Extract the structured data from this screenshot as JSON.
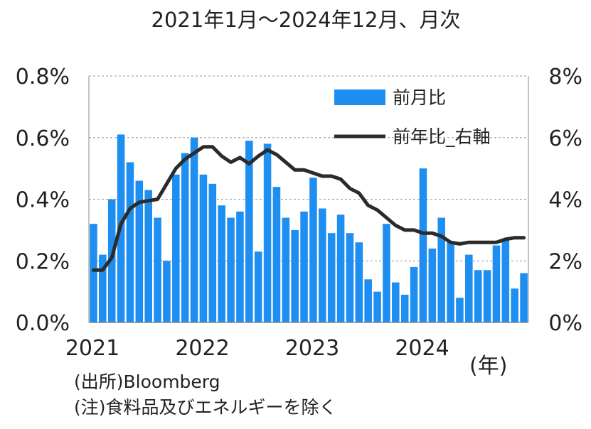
{
  "chart_data": {
    "type": "bar",
    "title": "2021年1月～2024年12月、月次",
    "x_label": "(年)",
    "x_ticks": [
      "2021",
      "2022",
      "2023",
      "2024"
    ],
    "y_left": {
      "min": 0,
      "max": 0.8,
      "ticks": [
        "0.0%",
        "0.2%",
        "0.4%",
        "0.6%",
        "0.8%"
      ]
    },
    "y_right": {
      "min": 0,
      "max": 8,
      "ticks": [
        "0%",
        "2%",
        "4%",
        "6%",
        "8%"
      ]
    },
    "grid": "horizontal dashed",
    "legend_position": "top-right",
    "colors": {
      "bar": "#1e8ef0",
      "line": "#2b2b2b"
    },
    "series": [
      {
        "name": "前月比",
        "type": "bar",
        "axis": "left",
        "values": [
          0.32,
          0.22,
          0.4,
          0.61,
          0.52,
          0.46,
          0.43,
          0.34,
          0.2,
          0.48,
          0.55,
          0.6,
          0.48,
          0.45,
          0.38,
          0.34,
          0.36,
          0.59,
          0.23,
          0.58,
          0.44,
          0.34,
          0.3,
          0.36,
          0.47,
          0.37,
          0.29,
          0.35,
          0.29,
          0.26,
          0.14,
          0.1,
          0.32,
          0.13,
          0.09,
          0.18,
          0.5,
          0.24,
          0.34,
          0.26,
          0.08,
          0.22,
          0.17,
          0.17,
          0.25,
          0.27,
          0.11,
          0.16
        ]
      },
      {
        "name": "前年比_右軸",
        "type": "line",
        "axis": "right",
        "values": [
          1.7,
          1.7,
          2.1,
          3.2,
          3.7,
          3.9,
          3.95,
          4.0,
          4.5,
          5.0,
          5.3,
          5.5,
          5.7,
          5.7,
          5.4,
          5.2,
          5.35,
          5.15,
          5.4,
          5.6,
          5.45,
          5.2,
          4.95,
          4.95,
          4.85,
          4.75,
          4.75,
          4.65,
          4.35,
          4.2,
          3.8,
          3.65,
          3.4,
          3.15,
          3.0,
          3.0,
          2.9,
          2.9,
          2.8,
          2.6,
          2.55,
          2.6,
          2.6,
          2.6,
          2.6,
          2.7,
          2.75,
          2.75
        ]
      }
    ]
  },
  "notes": {
    "source": "(出所)Bloomberg",
    "note": "(注)食料品及びエネルギーを除く"
  }
}
